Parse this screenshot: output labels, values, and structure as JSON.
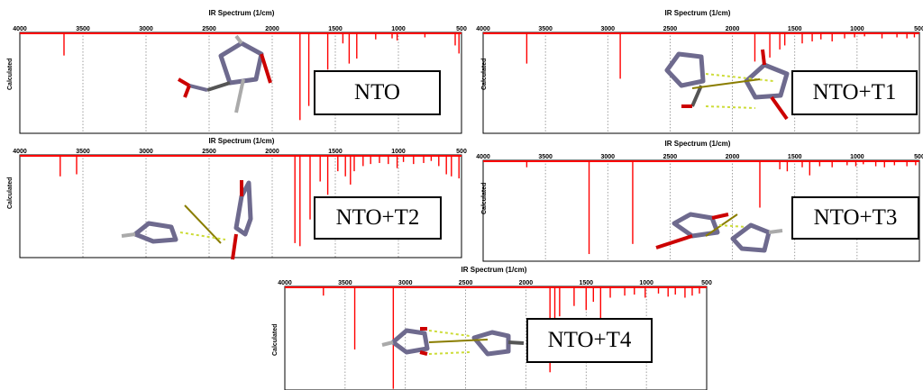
{
  "chart_data": [
    {
      "type": "line",
      "title": "IR Spectrum (1/cm)",
      "ylabel": "Calculated",
      "xlim": [
        4000,
        500
      ],
      "x_ticks": [
        4000,
        3500,
        3000,
        2500,
        2000,
        1500,
        1000,
        500
      ],
      "molecule_label": "NTO",
      "series": [
        {
          "peaks": [
            {
              "x": 3650,
              "y": 0.22
            },
            {
              "x": 1780,
              "y": 0.86
            },
            {
              "x": 1710,
              "y": 0.72
            },
            {
              "x": 1560,
              "y": 0.36
            },
            {
              "x": 1440,
              "y": 0.1
            },
            {
              "x": 1390,
              "y": 0.3
            },
            {
              "x": 1330,
              "y": 0.25
            },
            {
              "x": 1180,
              "y": 0.06
            },
            {
              "x": 1050,
              "y": 0.05
            },
            {
              "x": 1010,
              "y": 0.07
            },
            {
              "x": 790,
              "y": 0.04
            },
            {
              "x": 550,
              "y": 0.12
            },
            {
              "x": 520,
              "y": 0.2
            }
          ]
        }
      ]
    },
    {
      "type": "line",
      "title": "IR Spectrum (1/cm)",
      "ylabel": "Calculated",
      "xlim": [
        4000,
        500
      ],
      "x_ticks": [
        4000,
        3500,
        3000,
        2500,
        2000,
        1500,
        1000,
        500
      ],
      "molecule_label": "NTO+T1",
      "series": [
        {
          "peaks": [
            {
              "x": 3650,
              "y": 0.3
            },
            {
              "x": 2900,
              "y": 0.45
            },
            {
              "x": 1820,
              "y": 0.28
            },
            {
              "x": 1700,
              "y": 0.24
            },
            {
              "x": 1620,
              "y": 0.16
            },
            {
              "x": 1580,
              "y": 0.12
            },
            {
              "x": 1440,
              "y": 0.1
            },
            {
              "x": 1360,
              "y": 0.08
            },
            {
              "x": 1290,
              "y": 0.06
            },
            {
              "x": 1200,
              "y": 0.08
            },
            {
              "x": 1100,
              "y": 0.05
            },
            {
              "x": 1020,
              "y": 0.04
            },
            {
              "x": 940,
              "y": 0.03
            },
            {
              "x": 800,
              "y": 0.05
            },
            {
              "x": 680,
              "y": 0.04
            },
            {
              "x": 600,
              "y": 0.05
            },
            {
              "x": 540,
              "y": 0.04
            }
          ]
        }
      ]
    },
    {
      "type": "line",
      "title": "IR Spectrum (1/cm)",
      "ylabel": "Calculated",
      "xlim": [
        4000,
        500
      ],
      "x_ticks": [
        4000,
        3500,
        3000,
        2500,
        2000,
        1500,
        1000,
        500
      ],
      "molecule_label": "NTO+T2",
      "series": [
        {
          "peaks": [
            {
              "x": 3680,
              "y": 0.2
            },
            {
              "x": 3550,
              "y": 0.18
            },
            {
              "x": 1820,
              "y": 0.85
            },
            {
              "x": 1780,
              "y": 0.88
            },
            {
              "x": 1700,
              "y": 0.62
            },
            {
              "x": 1620,
              "y": 0.25
            },
            {
              "x": 1560,
              "y": 0.38
            },
            {
              "x": 1480,
              "y": 0.15
            },
            {
              "x": 1420,
              "y": 0.2
            },
            {
              "x": 1380,
              "y": 0.28
            },
            {
              "x": 1350,
              "y": 0.15
            },
            {
              "x": 1280,
              "y": 0.1
            },
            {
              "x": 1220,
              "y": 0.08
            },
            {
              "x": 1150,
              "y": 0.07
            },
            {
              "x": 1080,
              "y": 0.08
            },
            {
              "x": 1010,
              "y": 0.12
            },
            {
              "x": 960,
              "y": 0.06
            },
            {
              "x": 880,
              "y": 0.08
            },
            {
              "x": 800,
              "y": 0.07
            },
            {
              "x": 740,
              "y": 0.05
            },
            {
              "x": 680,
              "y": 0.1
            },
            {
              "x": 620,
              "y": 0.18
            },
            {
              "x": 580,
              "y": 0.2
            },
            {
              "x": 520,
              "y": 0.22
            }
          ]
        }
      ]
    },
    {
      "type": "line",
      "title": "IR Spectrum (1/cm)",
      "ylabel": "Calculated",
      "xlim": [
        4000,
        500
      ],
      "x_ticks": [
        4000,
        3500,
        3000,
        2500,
        2000,
        1500,
        1000,
        500
      ],
      "molecule_label": "NTO+T3",
      "series": [
        {
          "peaks": [
            {
              "x": 3650,
              "y": 0.06
            },
            {
              "x": 3150,
              "y": 0.92
            },
            {
              "x": 2800,
              "y": 0.82
            },
            {
              "x": 1780,
              "y": 0.46
            },
            {
              "x": 1620,
              "y": 0.08
            },
            {
              "x": 1560,
              "y": 0.1
            },
            {
              "x": 1440,
              "y": 0.06
            },
            {
              "x": 1380,
              "y": 0.14
            },
            {
              "x": 1300,
              "y": 0.05
            },
            {
              "x": 1200,
              "y": 0.06
            },
            {
              "x": 1080,
              "y": 0.04
            },
            {
              "x": 1010,
              "y": 0.05
            },
            {
              "x": 950,
              "y": 0.03
            },
            {
              "x": 850,
              "y": 0.05
            },
            {
              "x": 780,
              "y": 0.06
            },
            {
              "x": 700,
              "y": 0.04
            },
            {
              "x": 600,
              "y": 0.05
            },
            {
              "x": 530,
              "y": 0.04
            }
          ]
        }
      ]
    },
    {
      "type": "line",
      "title": "IR Spectrum (1/cm)",
      "ylabel": "Calculated",
      "xlim": [
        4000,
        500
      ],
      "x_ticks": [
        4000,
        3500,
        3000,
        2500,
        2000,
        1500,
        1000,
        500
      ],
      "molecule_label": "NTO+T4",
      "series": [
        {
          "peaks": [
            {
              "x": 3680,
              "y": 0.08
            },
            {
              "x": 3420,
              "y": 0.6
            },
            {
              "x": 3100,
              "y": 0.98
            },
            {
              "x": 1800,
              "y": 0.82
            },
            {
              "x": 1760,
              "y": 0.3
            },
            {
              "x": 1720,
              "y": 0.28
            },
            {
              "x": 1600,
              "y": 0.18
            },
            {
              "x": 1500,
              "y": 0.22
            },
            {
              "x": 1440,
              "y": 0.14
            },
            {
              "x": 1380,
              "y": 0.32
            },
            {
              "x": 1300,
              "y": 0.1
            },
            {
              "x": 1180,
              "y": 0.08
            },
            {
              "x": 1100,
              "y": 0.07
            },
            {
              "x": 1010,
              "y": 0.1
            },
            {
              "x": 900,
              "y": 0.06
            },
            {
              "x": 820,
              "y": 0.09
            },
            {
              "x": 760,
              "y": 0.07
            },
            {
              "x": 680,
              "y": 0.1
            },
            {
              "x": 620,
              "y": 0.08
            },
            {
              "x": 560,
              "y": 0.06
            }
          ]
        }
      ]
    }
  ],
  "style": {
    "spectrum_color": "#ff0000",
    "axis_color": "#000000",
    "grid_color": "#888888"
  }
}
